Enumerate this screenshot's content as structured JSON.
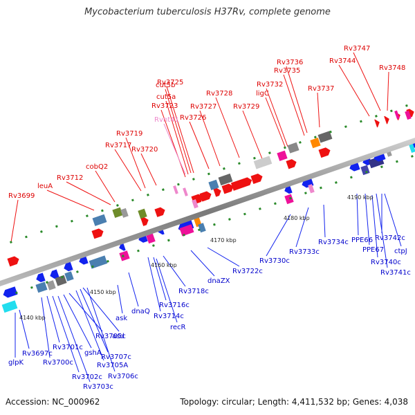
{
  "title": "Mycobacterium tuberculosis H37Rv, complete genome",
  "footer": {
    "accession": "Accession: NC_000962",
    "summary": "Topology: circular; Length: 4,411,532 bp; Genes: 4,038"
  },
  "colors": {
    "forward": "#ee1111",
    "reverse": "#1122ee",
    "backbone": "#888888",
    "rna": "#ee88cc"
  },
  "ticks": [
    "4140 kbp",
    "4150 kbp",
    "4160 kbp",
    "4170 kbp",
    "4180 kbp",
    "4190 kbp"
  ],
  "top_labels": [
    "Rv3699",
    "leuA",
    "Rv3712",
    "cobQ2",
    "Rv3717",
    "Rv3719",
    "Rv3720",
    "Rv3723",
    "cut5a",
    "cut5b",
    "Rv3725",
    "Rvnt41",
    "Rv3726",
    "Rv3727",
    "Rv3728",
    "Rv3729",
    "ligC",
    "Rv3732",
    "Rv3735",
    "Rv3736",
    "Rv3737",
    "Rv3744",
    "Rv3747",
    "Rv3748"
  ],
  "bottom_labels": [
    "glpK",
    "Rv3697c",
    "Rv3700c",
    "Rv3701c",
    "Rv3702c",
    "Rv3703c",
    "gshA",
    "Rv3705c",
    "Rv3705A",
    "asd",
    "Rv3706c",
    "Rv3707c",
    "ask",
    "dnaQ",
    "Rv3714c",
    "Rv3716c",
    "recR",
    "Rv3718c",
    "dnaZX",
    "Rv3722c",
    "Rv3730c",
    "Rv3733c",
    "Rv3734c",
    "PPE66",
    "PPE67",
    "Rv3740c",
    "Rv3741c",
    "Rv3742c",
    "ctpJ"
  ]
}
